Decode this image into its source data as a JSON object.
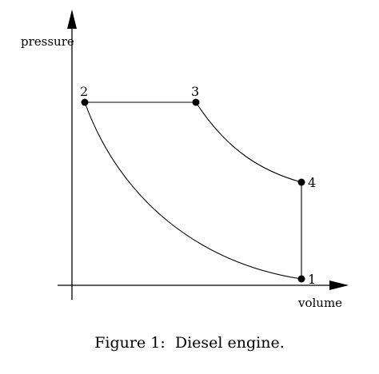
{
  "diagram": {
    "axes": {
      "y_label": "pressure",
      "x_label": "volume"
    },
    "points": [
      {
        "id": "1",
        "label": "1"
      },
      {
        "id": "2",
        "label": "2"
      },
      {
        "id": "3",
        "label": "3"
      },
      {
        "id": "4",
        "label": "4"
      }
    ],
    "caption": "Figure 1:  Diesel engine."
  }
}
